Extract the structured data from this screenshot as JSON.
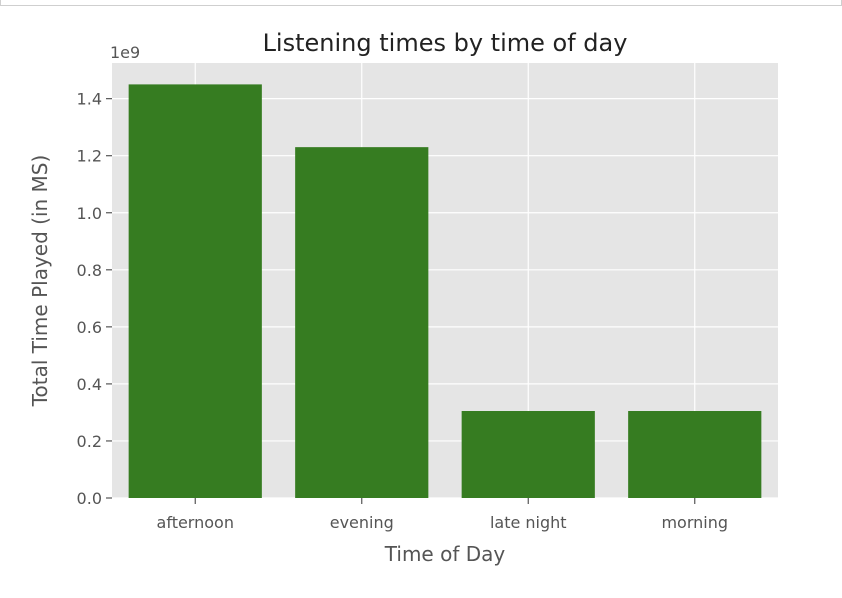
{
  "chart_data": {
    "type": "bar",
    "title": "Listening times by time of day",
    "xlabel": "Time of Day",
    "ylabel": "Total Time Played (in MS)",
    "y_offset_label": "1e9",
    "categories": [
      "afternoon",
      "evening",
      "late night",
      "morning"
    ],
    "values": [
      1450000000,
      1230000000,
      305000000,
      305000000
    ],
    "ylim": [
      0,
      1.525
    ],
    "yticks": [
      0.0,
      0.2,
      0.4,
      0.6,
      0.8,
      1.0,
      1.2,
      1.4
    ],
    "ytick_labels": [
      "0.0",
      "0.2",
      "0.4",
      "0.6",
      "0.8",
      "1.0",
      "1.2",
      "1.4"
    ],
    "grid": true,
    "bar_color": "#367c21",
    "plot_background": "#e5e5e5",
    "grid_color": "#ffffff"
  }
}
